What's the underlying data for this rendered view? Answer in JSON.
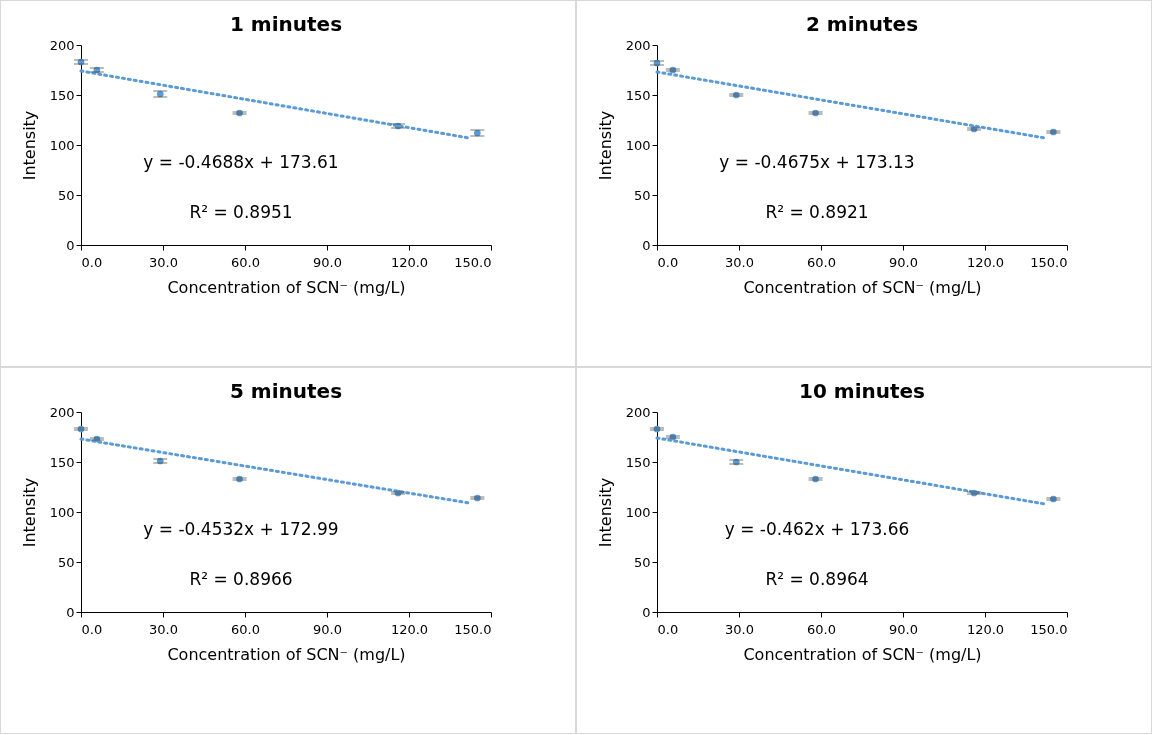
{
  "chart_data": [
    {
      "type": "scatter",
      "title": "1 minutes",
      "xlabel": "Concentration of SCN⁻ (mg/L)",
      "ylabel": "Intensity",
      "xlim": [
        0,
        150
      ],
      "ylim": [
        0,
        200
      ],
      "xticks": [
        {
          "value": 0,
          "label": "0.0"
        },
        {
          "value": 30,
          "label": "30.0"
        },
        {
          "value": 60,
          "label": "60.0"
        },
        {
          "value": 90,
          "label": "90.0"
        },
        {
          "value": 120,
          "label": "120.0"
        },
        {
          "value": 150,
          "label": "150.0"
        }
      ],
      "yticks": [
        0,
        50,
        100,
        150,
        200
      ],
      "grid": false,
      "marker": "circle",
      "annotations": [
        "y = -0.4688x + 173.61",
        "R² = 0.8951"
      ],
      "series": [
        {
          "color": "#5b9bd5",
          "x": [
            0,
            5.8,
            29,
            58,
            116,
            145
          ],
          "values": [
            183,
            175,
            151,
            132,
            119,
            112
          ],
          "errors": [
            2,
            2,
            3,
            1,
            2,
            3
          ]
        },
        {
          "type": "line",
          "marker": "none",
          "color": "#5b9bd5",
          "line_style": "dotted",
          "x": [
            0,
            142
          ],
          "values": [
            174,
            107
          ]
        }
      ]
    },
    {
      "type": "scatter",
      "title": "2 minutes",
      "xlabel": "Concentration of SCN⁻ (mg/L)",
      "ylabel": "Intensity",
      "xlim": [
        0,
        150
      ],
      "ylim": [
        0,
        200
      ],
      "xticks": [
        {
          "value": 0,
          "label": "0.0"
        },
        {
          "value": 30,
          "label": "30.0"
        },
        {
          "value": 60,
          "label": "60.0"
        },
        {
          "value": 90,
          "label": "90.0"
        },
        {
          "value": 120,
          "label": "120.0"
        },
        {
          "value": 150,
          "label": "150.0"
        }
      ],
      "yticks": [
        0,
        50,
        100,
        150,
        200
      ],
      "grid": false,
      "marker": "circle",
      "annotations": [
        "y = -0.4675x + 173.13",
        "R² = 0.8921"
      ],
      "series": [
        {
          "color": "#5b9bd5",
          "x": [
            0,
            5.8,
            29,
            58,
            116,
            145
          ],
          "values": [
            182,
            175,
            150,
            132,
            116,
            113
          ],
          "errors": [
            2,
            1,
            1,
            1,
            1,
            1
          ]
        },
        {
          "type": "line",
          "marker": "none",
          "color": "#5b9bd5",
          "line_style": "dotted",
          "x": [
            0,
            142
          ],
          "values": [
            173,
            107
          ]
        }
      ]
    },
    {
      "type": "scatter",
      "title": "5 minutes",
      "xlabel": "Concentration of SCN⁻ (mg/L)",
      "ylabel": "Intensity",
      "xlim": [
        0,
        150
      ],
      "ylim": [
        0,
        200
      ],
      "xticks": [
        {
          "value": 0,
          "label": "0.0"
        },
        {
          "value": 30,
          "label": "30.0"
        },
        {
          "value": 60,
          "label": "60.0"
        },
        {
          "value": 90,
          "label": "90.0"
        },
        {
          "value": 120,
          "label": "120.0"
        },
        {
          "value": 150,
          "label": "150.0"
        }
      ],
      "yticks": [
        0,
        50,
        100,
        150,
        200
      ],
      "grid": false,
      "marker": "circle",
      "annotations": [
        "y = -0.4532x + 172.99",
        "R² = 0.8966"
      ],
      "series": [
        {
          "color": "#5b9bd5",
          "x": [
            0,
            5.8,
            29,
            58,
            116,
            145
          ],
          "values": [
            183,
            173,
            151,
            133,
            119,
            114
          ],
          "errors": [
            1,
            1,
            2,
            1,
            1,
            1
          ]
        },
        {
          "type": "line",
          "marker": "none",
          "color": "#5b9bd5",
          "line_style": "dotted",
          "x": [
            0,
            142
          ],
          "values": [
            173,
            109
          ]
        }
      ]
    },
    {
      "type": "scatter",
      "title": "10 minutes",
      "xlabel": "Concentration of SCN⁻ (mg/L)",
      "ylabel": "Intensity",
      "xlim": [
        0,
        150
      ],
      "ylim": [
        0,
        200
      ],
      "xticks": [
        {
          "value": 0,
          "label": "0.0"
        },
        {
          "value": 30,
          "label": "30.0"
        },
        {
          "value": 60,
          "label": "60.0"
        },
        {
          "value": 90,
          "label": "90.0"
        },
        {
          "value": 120,
          "label": "120.0"
        },
        {
          "value": 150,
          "label": "150.0"
        }
      ],
      "yticks": [
        0,
        50,
        100,
        150,
        200
      ],
      "grid": false,
      "marker": "circle",
      "annotations": [
        "y = -0.462x + 173.66",
        "R² = 0.8964"
      ],
      "series": [
        {
          "color": "#5b9bd5",
          "x": [
            0,
            5.8,
            29,
            58,
            116,
            145
          ],
          "values": [
            183,
            175,
            150,
            133,
            119,
            113
          ],
          "errors": [
            1,
            1,
            2,
            1,
            1,
            1
          ]
        },
        {
          "type": "line",
          "marker": "none",
          "color": "#5b9bd5",
          "line_style": "dotted",
          "x": [
            0,
            142
          ],
          "values": [
            174,
            108
          ]
        }
      ]
    }
  ]
}
